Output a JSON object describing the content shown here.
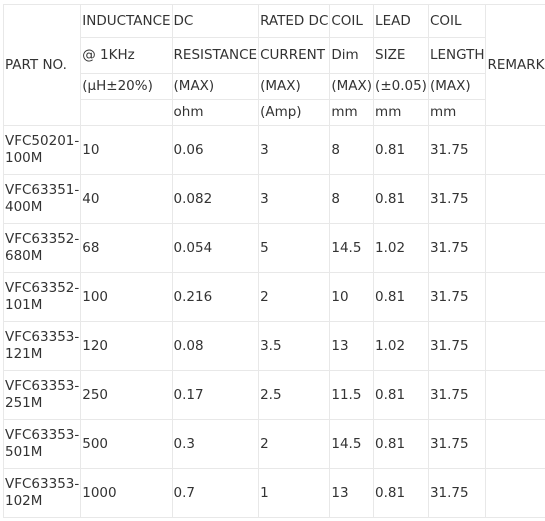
{
  "headers": {
    "part_no": "PART NO.",
    "remark": "REMARK",
    "row1": [
      "INDUCTANCE",
      "DC",
      "RATED DC",
      "COIL",
      "LEAD",
      "COIL"
    ],
    "row2": [
      "@ 1KHz",
      "RESISTANCE",
      "CURRENT",
      "Dim",
      "SIZE",
      "LENGTH"
    ],
    "row3": [
      "(µH±20%)",
      "(MAX)",
      "(MAX)",
      "(MAX)",
      "(±0.05)",
      "(MAX)"
    ],
    "row4": [
      "",
      "ohm",
      "(Amp)",
      "mm",
      "mm",
      "mm"
    ]
  },
  "rows": [
    {
      "part": [
        "VFC50201-",
        "100M"
      ],
      "inductance": "10",
      "dcr": "0.06",
      "current": "3",
      "coil_dim": "8",
      "lead_size": "0.81",
      "coil_length": "31.75",
      "remark": ""
    },
    {
      "part": [
        "VFC63351-",
        "400M"
      ],
      "inductance": "40",
      "dcr": "0.082",
      "current": "3",
      "coil_dim": "8",
      "lead_size": "0.81",
      "coil_length": "31.75",
      "remark": ""
    },
    {
      "part": [
        "VFC63352-",
        "680M"
      ],
      "inductance": "68",
      "dcr": "0.054",
      "current": "5",
      "coil_dim": "14.5",
      "lead_size": "1.02",
      "coil_length": "31.75",
      "remark": ""
    },
    {
      "part": [
        "VFC63352-",
        "101M"
      ],
      "inductance": "100",
      "dcr": "0.216",
      "current": "2",
      "coil_dim": "10",
      "lead_size": "0.81",
      "coil_length": "31.75",
      "remark": ""
    },
    {
      "part": [
        "VFC63353-",
        "121M"
      ],
      "inductance": "120",
      "dcr": "0.08",
      "current": "3.5",
      "coil_dim": "13",
      "lead_size": "1.02",
      "coil_length": "31.75",
      "remark": ""
    },
    {
      "part": [
        "VFC63353-",
        "251M"
      ],
      "inductance": "250",
      "dcr": "0.17",
      "current": "2.5",
      "coil_dim": "11.5",
      "lead_size": "0.81",
      "coil_length": "31.75",
      "remark": ""
    },
    {
      "part": [
        "VFC63353-",
        "501M"
      ],
      "inductance": "500",
      "dcr": "0.3",
      "current": "2",
      "coil_dim": "14.5",
      "lead_size": "0.81",
      "coil_length": "31.75",
      "remark": ""
    },
    {
      "part": [
        "VFC63353-",
        "102M"
      ],
      "inductance": "1000",
      "dcr": "0.7",
      "current": "1",
      "coil_dim": "13",
      "lead_size": "0.81",
      "coil_length": "31.75",
      "remark": ""
    }
  ]
}
